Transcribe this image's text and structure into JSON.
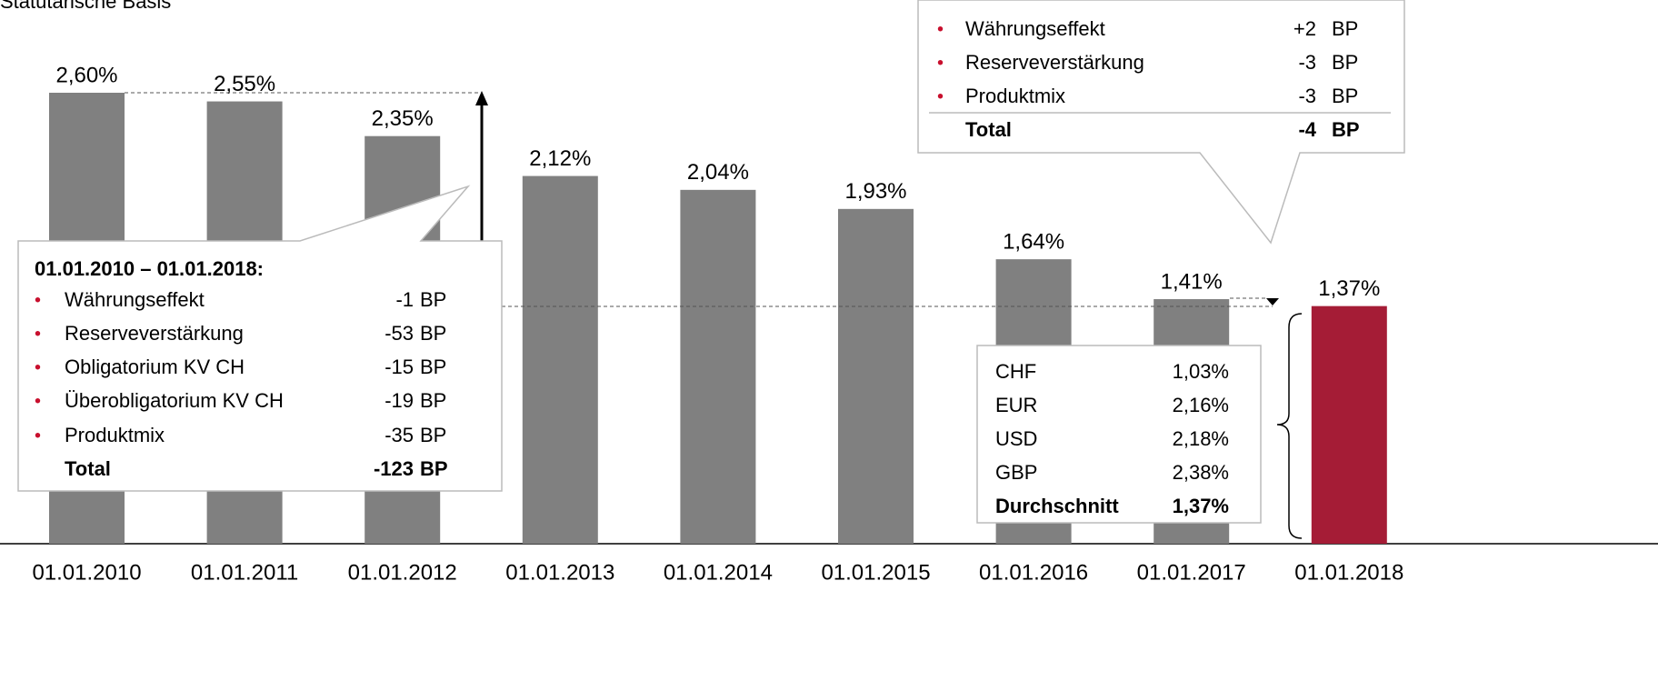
{
  "chart_data": {
    "type": "bar",
    "title": "Statutarische Basis",
    "categories": [
      "01.01.2010",
      "01.01.2011",
      "01.01.2012",
      "01.01.2013",
      "01.01.2014",
      "01.01.2015",
      "01.01.2016",
      "01.01.2017",
      "01.01.2018"
    ],
    "values": [
      2.6,
      2.55,
      2.35,
      2.12,
      2.04,
      1.93,
      1.64,
      1.41,
      1.37
    ],
    "value_labels": [
      "2,60%",
      "2,55%",
      "2,35%",
      "2,12%",
      "2,04%",
      "1,93%",
      "1,64%",
      "1,41%",
      "1,37%"
    ],
    "colors": [
      "#808080",
      "#808080",
      "#808080",
      "#808080",
      "#808080",
      "#808080",
      "#808080",
      "#808080",
      "#a51c36"
    ],
    "annotations": {
      "total_change": {
        "heading": "01.01.2010 – 01.01.2018:",
        "items": [
          {
            "name": "Währungseffekt",
            "value": "-1",
            "unit": "BP"
          },
          {
            "name": "Reserveverstärkung",
            "value": "-53",
            "unit": "BP"
          },
          {
            "name": "Obligatorium KV CH",
            "value": "-15",
            "unit": "BP"
          },
          {
            "name": "Überobligatorium KV CH",
            "value": "-19",
            "unit": "BP"
          },
          {
            "name": "Produktmix",
            "value": "-35",
            "unit": "BP"
          }
        ],
        "total": {
          "name": "Total",
          "value": "-123",
          "unit": "BP"
        }
      },
      "last_change": {
        "items": [
          {
            "name": "Währungseffekt",
            "value": "+2",
            "unit": "BP"
          },
          {
            "name": "Reserveverstärkung",
            "value": "-3",
            "unit": "BP"
          },
          {
            "name": "Produktmix",
            "value": "-3",
            "unit": "BP"
          }
        ],
        "total": {
          "name": "Total",
          "value": "-4",
          "unit": "BP"
        }
      },
      "currencies": {
        "items": [
          {
            "name": "CHF",
            "value": "1,03%"
          },
          {
            "name": "EUR",
            "value": "2,16%"
          },
          {
            "name": "USD",
            "value": "2,18%"
          },
          {
            "name": "GBP",
            "value": "2,38%"
          }
        ],
        "total": {
          "name": "Durchschnitt",
          "value": "1,37%"
        }
      }
    }
  }
}
